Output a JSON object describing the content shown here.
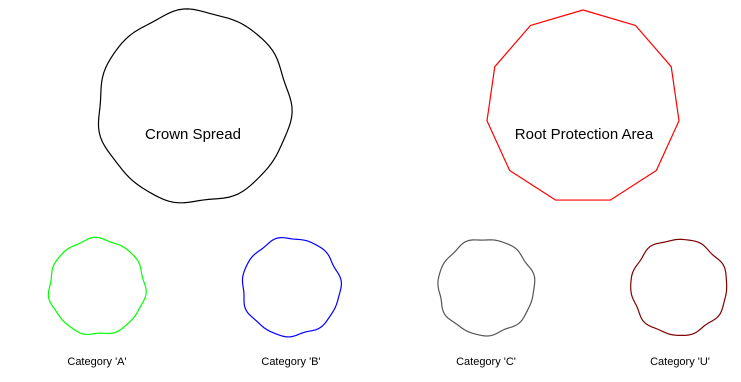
{
  "crown_spread": {
    "label": "Crown Spread",
    "stroke_color": "#000000"
  },
  "root_protection_area": {
    "label": "Root Protection Area",
    "stroke_color": "#ff0000"
  },
  "categories": [
    {
      "label": "Category 'A'",
      "stroke_color": "#00ff00"
    },
    {
      "label": "Category 'B'",
      "stroke_color": "#0000ff"
    },
    {
      "label": "Category 'C'",
      "stroke_color": "#555555"
    },
    {
      "label": "Category 'U'",
      "stroke_color": "#800000"
    }
  ]
}
